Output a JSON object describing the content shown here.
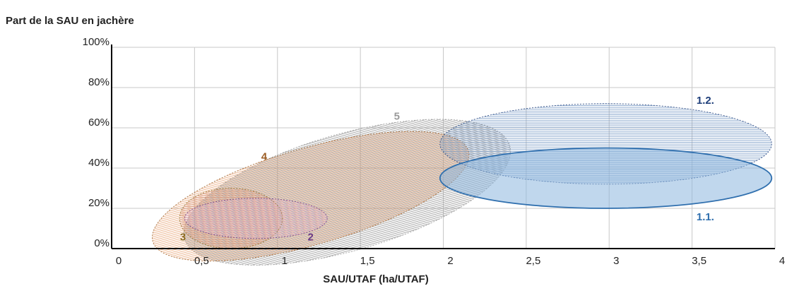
{
  "chart_data": {
    "type": "scatter",
    "ylabel": "Part de la SAU en jachère",
    "xlabel": "SAU/UTAF (ha/UTAF)",
    "xlim": [
      0,
      4
    ],
    "ylim": [
      0,
      100
    ],
    "grid": true,
    "x_ticks": [
      "0",
      "0,5",
      "1",
      "1,5",
      "2",
      "2,5",
      "3",
      "3,5",
      "4"
    ],
    "y_ticks": [
      "0%",
      "20%",
      "40%",
      "60%",
      "80%",
      "100%"
    ],
    "series": [
      {
        "name": "5",
        "color": "#9a9a9a",
        "fill": "#8c8c8c",
        "cx": 1.42,
        "cy": 28,
        "rx": 1.02,
        "ry": 29,
        "angle": 16,
        "label_x": 1.72,
        "label_y": 64,
        "style": "hatched"
      },
      {
        "name": "4",
        "color": "#9a5b22",
        "fill": "#e6a070",
        "cx": 1.2,
        "cy": 26,
        "rx": 0.99,
        "ry": 24,
        "angle": 16,
        "label_x": 0.92,
        "label_y": 44,
        "style": "hatched"
      },
      {
        "name": "3",
        "color": "#8b6a1e",
        "fill": "#d48c70",
        "cx": 0.72,
        "cy": 15,
        "rx": 0.31,
        "ry": 15,
        "angle": 0,
        "label_x": 0.43,
        "label_y": 4,
        "style": "hatched"
      },
      {
        "name": "2",
        "color": "#6b3b86",
        "fill": "#d9a3c6",
        "cx": 0.87,
        "cy": 15,
        "rx": 0.43,
        "ry": 10,
        "angle": 0,
        "label_x": 1.2,
        "label_y": 4,
        "style": "hatched"
      },
      {
        "name": "1.2.",
        "color": "#1f3f7a",
        "fill": "#6a90c0",
        "cx": 2.98,
        "cy": 52,
        "rx": 1.0,
        "ry": 20,
        "angle": 0,
        "label_x": 3.58,
        "label_y": 72,
        "style": "hatched"
      },
      {
        "name": "1.1.",
        "color": "#2f6fae",
        "fill": "#8cb6de",
        "cx": 2.98,
        "cy": 35,
        "rx": 1.0,
        "ry": 15,
        "angle": 0,
        "label_x": 3.58,
        "label_y": 14,
        "style": "solid"
      }
    ]
  }
}
